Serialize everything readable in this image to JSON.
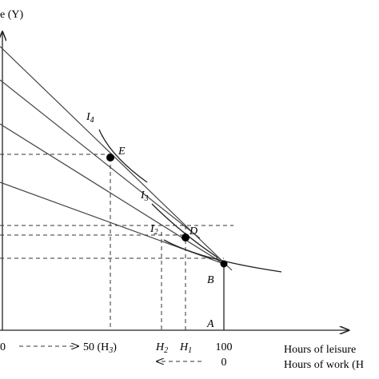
{
  "axis": {
    "y_label": "e (Y)",
    "x_label_leisure": "Hours of leisure",
    "x_label_work": "Hours of work (H"
  },
  "ticks": {
    "leisure_start": "0",
    "h3": {
      "text": "50 (H",
      "sub": "3",
      "end": ")"
    },
    "h2": {
      "text": "H",
      "sub": "2"
    },
    "h1": {
      "text": "H",
      "sub": "1"
    },
    "leisure_end": "100",
    "work_start": "0"
  },
  "points": {
    "e": "E",
    "d": "D",
    "b": "B",
    "a": "A"
  },
  "curves": {
    "i4": {
      "text": "I",
      "sub": "4"
    },
    "i3": {
      "text": "I",
      "sub": "3"
    },
    "i2": {
      "text": "I",
      "sub": "2"
    }
  }
}
